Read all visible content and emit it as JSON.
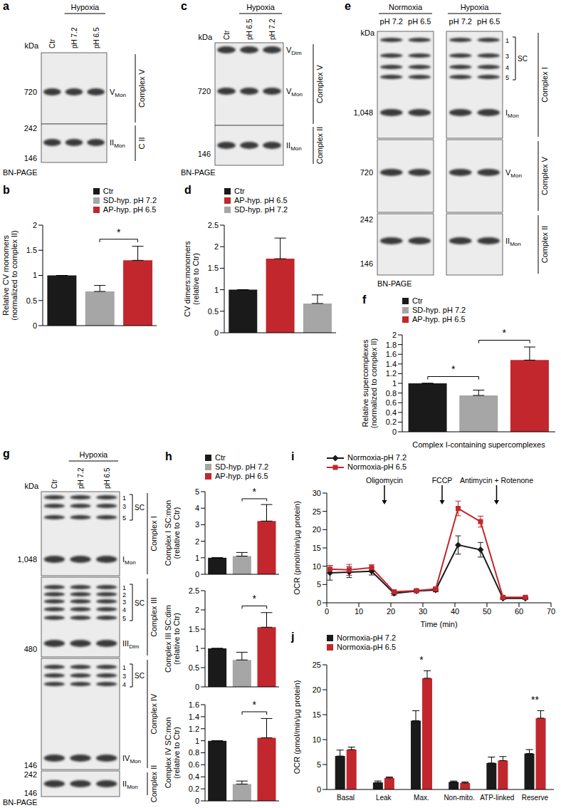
{
  "blots": [
    {
      "panel": "a",
      "unit": "kDa",
      "groups": [
        {
          "lanes": [
            "Ctr"
          ]
        },
        {
          "label": "Hypoxia",
          "lanes": [
            "pH 7.2",
            "pH 6.5"
          ]
        }
      ],
      "sections": [
        {
          "name": "Complex V",
          "markers": [
            720
          ],
          "bands": [
            {
              "text": "V",
              "sub": "Mon"
            }
          ]
        },
        {
          "name": "C II",
          "markers": [
            242,
            146
          ],
          "bands": [
            {
              "text": "II",
              "sub": "Mon"
            }
          ]
        }
      ],
      "method": "BN-PAGE"
    },
    {
      "panel": "c",
      "unit": "kDa",
      "groups": [
        {
          "lanes": [
            "Ctr"
          ]
        },
        {
          "label": "Hypoxia",
          "lanes": [
            "pH 6.5",
            "pH 7.2"
          ]
        }
      ],
      "sections": [
        {
          "name": "Complex V",
          "markers": [
            720
          ],
          "bands": [
            {
              "text": "V",
              "sub": "Dim"
            },
            {
              "text": "V",
              "sub": "Mon"
            }
          ]
        },
        {
          "name": "Complex II",
          "markers": [
            146
          ],
          "bands": [
            {
              "text": "II",
              "sub": "Mon"
            }
          ]
        }
      ],
      "method": "BN-PAGE"
    },
    {
      "panel": "e",
      "unit": "kDa",
      "groups": [
        {
          "label": "Normoxia",
          "lanes": [
            "pH 7.2",
            "pH 6.5"
          ]
        },
        {
          "label": "Hypoxia",
          "lanes": [
            "pH 7.2",
            "pH 6.5"
          ]
        }
      ],
      "sections": [
        {
          "name": "Complex I",
          "markers": [
            {
              "value": 1048,
              "label": "1,048"
            }
          ],
          "sc": {
            "label": "SC",
            "items": [
              1,
              3,
              4,
              5
            ]
          },
          "bands": [
            {
              "text": "I",
              "sub": "Mon"
            }
          ]
        },
        {
          "name": "Complex V",
          "markers": [
            720
          ],
          "bands": [
            {
              "text": "V",
              "sub": "Mon"
            }
          ]
        },
        {
          "name": "Complex II",
          "markers": [
            242,
            146
          ],
          "bands": [
            {
              "text": "II",
              "sub": "Mon"
            }
          ]
        }
      ],
      "method": "BN-PAGE"
    },
    {
      "panel": "g",
      "unit": "kDa",
      "groups": [
        {
          "lanes": [
            "Ctr"
          ]
        },
        {
          "label": "Hypoxia",
          "lanes": [
            "pH 7.2",
            "pH 6.5"
          ]
        }
      ],
      "sections": [
        {
          "name": "Complex I",
          "markers": [
            {
              "value": 1048,
              "label": "1,048"
            }
          ],
          "sc": {
            "label": "SC",
            "items": [
              1,
              3,
              5
            ]
          },
          "bands": [
            {
              "text": "I",
              "sub": "Mon"
            }
          ]
        },
        {
          "name": "Complex III",
          "markers": [
            480
          ],
          "sc": {
            "label": "SC",
            "items": [
              1,
              2,
              3,
              4,
              5
            ]
          },
          "bands": [
            {
              "text": "III",
              "sub": "Dim"
            }
          ]
        },
        {
          "name": "Complex IV",
          "markers": [
            146
          ],
          "sc": {
            "label": "SC",
            "items": [
              1,
              3,
              4
            ]
          },
          "bands": [
            {
              "text": "IV",
              "sub": "Mon"
            }
          ]
        },
        {
          "name": "Complex II",
          "markers": [
            242,
            146
          ],
          "bands": [
            {
              "text": "II",
              "sub": "Mon"
            }
          ]
        }
      ],
      "method": "BN-PAGE"
    }
  ],
  "chart_data": [
    {
      "panel": "b",
      "type": "bar",
      "categories": [
        "Ctr",
        "SD-hyp. pH 7.2",
        "AP-hyp. pH 6.5"
      ],
      "values": [
        1,
        0.68,
        1.3
      ],
      "errors": [
        null,
        0.12,
        0.28
      ],
      "colors": [
        "#1a1a1a",
        "#a6a6a6",
        "#c1272d"
      ],
      "ylabel": "Relative CV monomers\n(normalized to complex II)",
      "ylim": [
        0,
        2
      ],
      "yticks": [
        0,
        0.5,
        1,
        1.5,
        2
      ],
      "tick_labels": "y",
      "legend": "top-right",
      "annotations": [
        {
          "text": "*",
          "from": "SD-hyp. pH 7.2",
          "to": "AP-hyp. pH 6.5"
        }
      ]
    },
    {
      "panel": "d",
      "type": "bar",
      "categories": [
        "Ctr",
        "AP-hyp. pH 6.5",
        "SD-hyp. pH 7.2"
      ],
      "values": [
        1,
        1.72,
        0.68
      ],
      "errors": [
        null,
        0.48,
        0.2
      ],
      "colors": [
        "#1a1a1a",
        "#c1272d",
        "#a6a6a6"
      ],
      "ylabel": "CV dimers:monomers\n(relative to Ctr)",
      "ylim": [
        0,
        2.5
      ],
      "yticks": [
        0,
        0.5,
        1,
        1.5,
        2,
        2.5
      ],
      "tick_labels": "y",
      "legend": "top-left"
    },
    {
      "panel": "f",
      "type": "bar",
      "categories": [
        "Ctr",
        "SD-hyp. pH 7.2",
        "AP-hyp. pH 6.5"
      ],
      "values": [
        1,
        0.75,
        1.48
      ],
      "errors": [
        null,
        0.11,
        0.27
      ],
      "colors": [
        "#1a1a1a",
        "#a6a6a6",
        "#c1272d"
      ],
      "ylabel": "Relative supercomplexes\n(normalized to complex II)",
      "xlabel": "Complex I-containing supercomplexes",
      "ylim": [
        0,
        2
      ],
      "yticks": [
        0,
        0.2,
        0.4,
        0.6,
        0.8,
        1,
        1.2,
        1.4,
        1.6,
        1.8,
        2
      ],
      "tick_labels": "y",
      "legend": "top-left",
      "annotations": [
        {
          "text": "*",
          "from": "Ctr",
          "to": "SD-hyp. pH 7.2"
        },
        {
          "text": "*",
          "from": "SD-hyp. pH 7.2",
          "to": "AP-hyp. pH 6.5"
        }
      ]
    },
    {
      "panel": "h",
      "type": "bar",
      "categories": [
        "Ctr",
        "SD-hyp. pH 7.2",
        "AP-hyp. pH 6.5"
      ],
      "values": [
        1,
        1.1,
        3.22
      ],
      "errors": [
        null,
        0.22,
        1.0
      ],
      "colors": [
        "#1a1a1a",
        "#a6a6a6",
        "#c1272d"
      ],
      "ylabel": "Complex I SC:mon\n(relative to Ctr)",
      "ylim": [
        0,
        5
      ],
      "yticks": [
        0,
        1,
        2,
        3,
        4,
        5
      ],
      "tick_labels": "y",
      "legend": "top-left",
      "annotations": [
        {
          "text": "*",
          "from": "SD-hyp. pH 7.2",
          "to": "AP-hyp. pH 6.5"
        }
      ]
    },
    {
      "type": "bar",
      "categories": [
        "Ctr",
        "SD-hyp. pH 7.2",
        "AP-hyp. pH 6.5"
      ],
      "values": [
        1,
        0.7,
        1.55
      ],
      "errors": [
        null,
        0.2,
        0.38
      ],
      "colors": [
        "#1a1a1a",
        "#a6a6a6",
        "#c1272d"
      ],
      "ylabel": "Complex III SC:dim\n(relative to Ctr)",
      "ylim": [
        0,
        2.5
      ],
      "yticks": [
        0,
        0.5,
        1,
        1.5,
        2,
        2.5
      ],
      "tick_labels": "y",
      "annotations": [
        {
          "text": "*",
          "from": "SD-hyp. pH 7.2",
          "to": "AP-hyp. pH 6.5"
        }
      ]
    },
    {
      "type": "bar",
      "categories": [
        "Ctr",
        "SD-hyp. pH 7.2",
        "AP-hyp. pH 6.5"
      ],
      "values": [
        1,
        0.28,
        1.05
      ],
      "errors": [
        null,
        0.05,
        0.32
      ],
      "colors": [
        "#1a1a1a",
        "#a6a6a6",
        "#c1272d"
      ],
      "ylabel": "Complex IV SC:mon\n(relative to Ctr)",
      "ylim": [
        0,
        1.6
      ],
      "yticks": [
        0,
        0.2,
        0.4,
        0.6,
        0.8,
        1,
        1.2,
        1.4,
        1.6
      ],
      "tick_labels": "y",
      "annotations": [
        {
          "text": "*",
          "from": "SD-hyp. pH 7.2",
          "to": "AP-hyp. pH 6.5"
        }
      ]
    },
    {
      "panel": "i",
      "type": "line",
      "x": [
        1,
        7,
        14,
        21,
        28,
        34,
        41,
        48,
        55,
        62
      ],
      "series": [
        {
          "name": "Normoxia-pH 7.2",
          "color": "#1a1a1a",
          "marker": "diamond",
          "values": [
            8.2,
            8.4,
            8.6,
            2.6,
            3.2,
            3.5,
            15.8,
            14.5,
            1.2,
            1.2
          ],
          "errors": [
            2,
            1.5,
            1,
            0.5,
            0.4,
            0.5,
            2.5,
            2,
            0.3,
            0.3
          ]
        },
        {
          "name": "Normoxia-pH 6.5",
          "color": "#c1272d",
          "marker": "square",
          "values": [
            9.2,
            9,
            9.6,
            3,
            3.3,
            3.8,
            25.8,
            22.2,
            1.5,
            1.5
          ],
          "errors": [
            1,
            1.5,
            0.8,
            0.5,
            0.4,
            0.5,
            2,
            1.5,
            0.3,
            0.3
          ]
        }
      ],
      "xlabel": "Time (min)",
      "ylabel": "OCR (pmol/min/µg protein)",
      "xlim": [
        0,
        70
      ],
      "xticks": [
        0,
        10,
        20,
        30,
        40,
        50,
        60,
        70
      ],
      "ylim": [
        0,
        30
      ],
      "yticks": [
        0,
        5,
        10,
        15,
        20,
        25,
        30
      ],
      "legend": "top-left",
      "annotations": [
        {
          "text": "Oligomycin",
          "x": 18
        },
        {
          "text": "FCCP",
          "x": 36
        },
        {
          "text": "Antimycin + Rotenone",
          "x": 53
        }
      ]
    },
    {
      "panel": "j",
      "type": "bar",
      "categories": [
        "Basal",
        "Leak",
        "Max.",
        "Non-mito.",
        "ATP-linked",
        "Reserve"
      ],
      "series": [
        {
          "name": "Normoxia-pH 7.2",
          "color": "#1a1a1a",
          "values": [
            6.7,
            1.4,
            13.8,
            1.5,
            5.3,
            7.2
          ],
          "errors": [
            1.2,
            0.3,
            2,
            0.2,
            1.2,
            0.8
          ]
        },
        {
          "name": "Normoxia-pH 6.5",
          "color": "#c1272d",
          "values": [
            8,
            2.3,
            22.3,
            1.3,
            5.8,
            14.3
          ],
          "errors": [
            0.5,
            0.2,
            1.5,
            0.2,
            0.8,
            1.5
          ]
        }
      ],
      "ylabel": "OCR (pmol/min/µg protein)",
      "ylim": [
        0,
        25
      ],
      "yticks": [
        0,
        5,
        10,
        15,
        20,
        25
      ],
      "legend": "top-left",
      "annotations": [
        {
          "text": "*",
          "x": "Max."
        },
        {
          "text": "**",
          "x": "Reserve"
        }
      ]
    }
  ]
}
